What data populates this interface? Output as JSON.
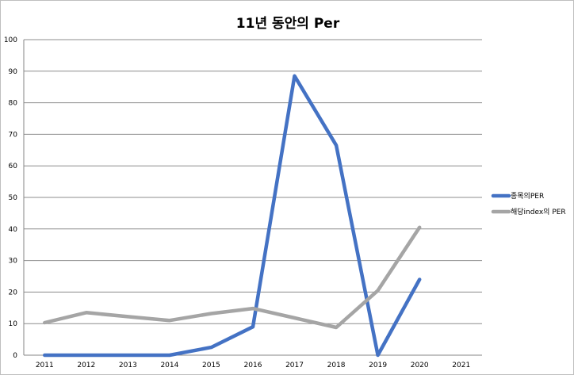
{
  "chart_data": {
    "type": "line",
    "title": "11년 동안의 Per",
    "xlabel": "",
    "ylabel": "",
    "categories": [
      "2011",
      "2012",
      "2013",
      "2014",
      "2015",
      "2016",
      "2017",
      "2018",
      "2019",
      "2020",
      "2021"
    ],
    "ylim": [
      0,
      100
    ],
    "yticks": [
      0,
      10,
      20,
      30,
      40,
      50,
      60,
      70,
      80,
      90,
      100
    ],
    "grid": true,
    "legend_position": "right",
    "series": [
      {
        "name": "종목의PER",
        "color": "#4472C4",
        "values": [
          0,
          0,
          0,
          0,
          2.5,
          9,
          88.5,
          66.5,
          0,
          24,
          null
        ]
      },
      {
        "name": "해당index의 PER",
        "color": "#A5A5A5",
        "values": [
          10.3,
          13.5,
          12.2,
          11,
          13.2,
          14.8,
          11.8,
          8.8,
          20.5,
          40.5,
          null
        ]
      }
    ]
  }
}
